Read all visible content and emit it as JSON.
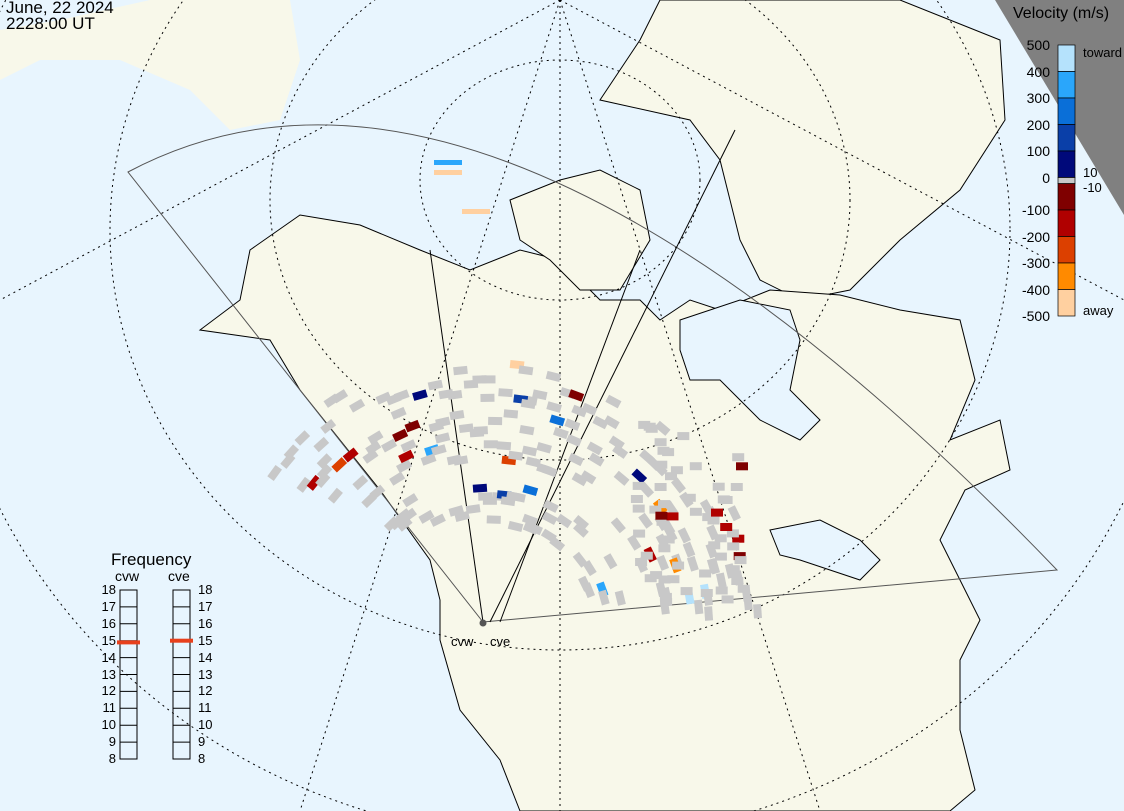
{
  "header": {
    "date": "June, 22 2024",
    "time": "2228:00 UT"
  },
  "colorbar": {
    "title": "Velocity (m/s)",
    "ticks": [
      "500",
      "400",
      "300",
      "200",
      "100",
      "0",
      "-100",
      "-200",
      "-300",
      "-400",
      "-500"
    ],
    "toward_label": "toward",
    "away_label": "away",
    "ground_scatter_upper": "10",
    "ground_scatter_lower": "-10",
    "colors": [
      "#b5e2fc",
      "#2aa6fb",
      "#0a6fd8",
      "#0a3fa8",
      "#00097a",
      "#7f0000",
      "#b00000",
      "#dc4000",
      "#ff8a00",
      "#ffd0a0"
    ],
    "ground_scatter_color": "#c8c8c8"
  },
  "frequency": {
    "title": "Frequency",
    "unit_ticks": [
      "18",
      "17",
      "16",
      "15",
      "14",
      "13",
      "12",
      "11",
      "10",
      "9",
      "8"
    ],
    "radars": [
      {
        "name": "cvw",
        "value_mhz": 14.9
      },
      {
        "name": "cve",
        "value_mhz": 15.0
      }
    ],
    "marker_color": "#e8401c"
  },
  "radars": [
    {
      "name": "cvw"
    },
    {
      "name": "cve"
    }
  ]
}
